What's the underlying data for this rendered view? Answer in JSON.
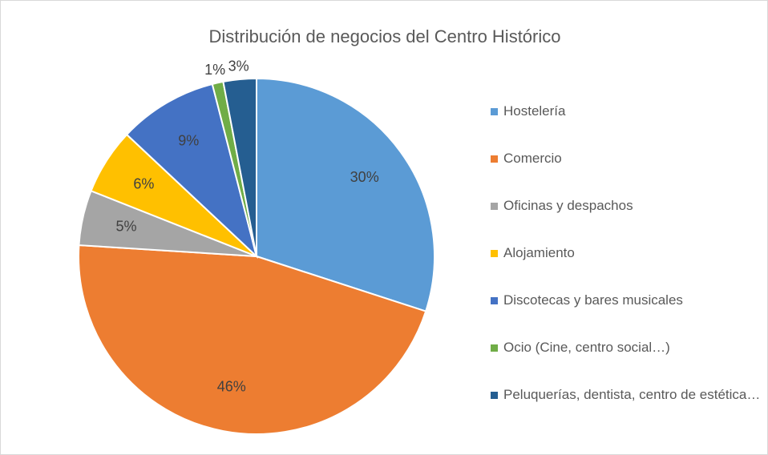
{
  "chart_data": {
    "type": "pie",
    "title": "Distribución de negocios del Centro Histórico",
    "categories": [
      "Hostelería",
      "Comercio",
      "Oficinas y despachos",
      "Alojamiento",
      "Discotecas y bares musicales",
      "Ocio (Cine, centro social…)",
      "Peluquerías, dentista, centro de estética…"
    ],
    "values": [
      30,
      46,
      5,
      6,
      9,
      1,
      3
    ],
    "value_labels": [
      "30%",
      "46%",
      "5%",
      "6%",
      "9%",
      "1%",
      "3%"
    ],
    "colors": [
      "#5b9bd5",
      "#ed7d31",
      "#a5a5a5",
      "#ffc000",
      "#4472c4",
      "#70ad47",
      "#255e91"
    ],
    "legend": "right"
  }
}
